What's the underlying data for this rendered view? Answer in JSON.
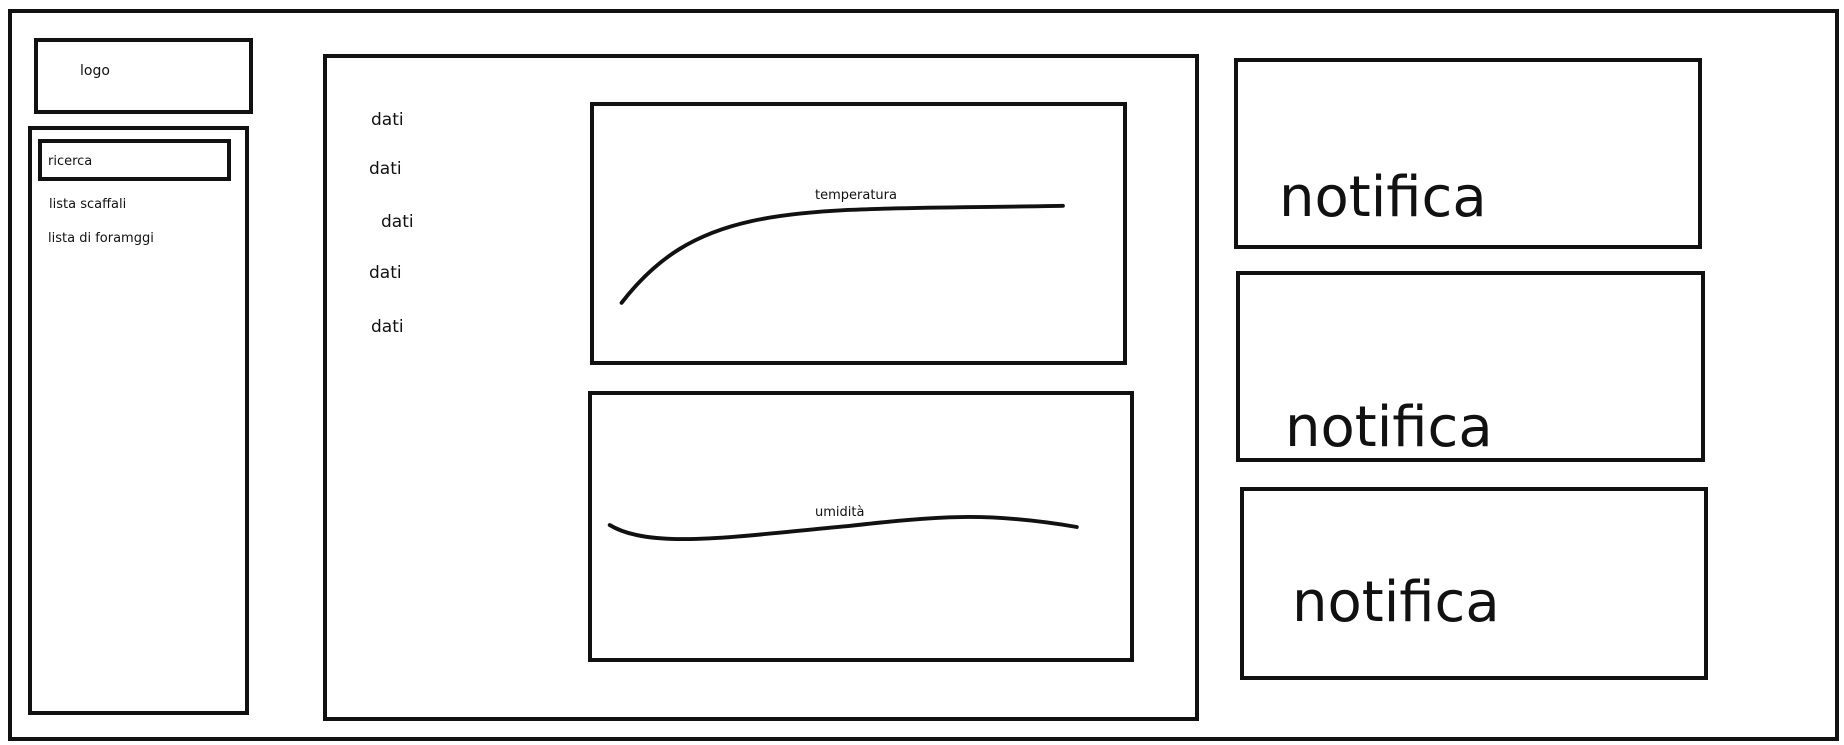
{
  "logo": {
    "label": "logo"
  },
  "sidebar": {
    "search_label": "ricerca",
    "items": [
      {
        "label": "lista scaffali"
      },
      {
        "label": "lista di foramggi"
      }
    ]
  },
  "main": {
    "data_labels": [
      "dati",
      "dati",
      "dati",
      "dati",
      "dati"
    ],
    "charts": [
      {
        "title": "temperatura"
      },
      {
        "title": "umidità"
      }
    ]
  },
  "notifications": [
    {
      "label": "notifica"
    },
    {
      "label": "notifica"
    },
    {
      "label": "notifica"
    }
  ],
  "colors": {
    "stroke": "#111111",
    "background": "#ffffff"
  }
}
